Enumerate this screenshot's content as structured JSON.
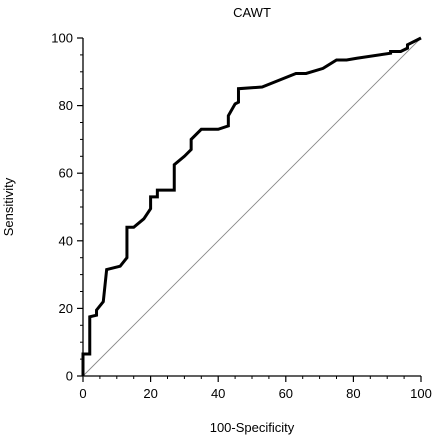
{
  "chart_data": {
    "type": "line",
    "title": "CAWT",
    "xlabel": "100-Specificity",
    "ylabel": "Sensitivity",
    "xlim": [
      0,
      100
    ],
    "ylim": [
      0,
      100
    ],
    "xticks": [
      0,
      20,
      40,
      60,
      80,
      100
    ],
    "yticks": [
      0,
      20,
      40,
      60,
      80,
      100
    ],
    "grid": false,
    "series": [
      {
        "role": "roc-curve",
        "color": "#000000",
        "points": [
          [
            0,
            0
          ],
          [
            0,
            6.5
          ],
          [
            2,
            6.5
          ],
          [
            2,
            17.5
          ],
          [
            4,
            18
          ],
          [
            4,
            19.5
          ],
          [
            6,
            22
          ],
          [
            7,
            31.5
          ],
          [
            11,
            32.5
          ],
          [
            13,
            35
          ],
          [
            13,
            44
          ],
          [
            15,
            44
          ],
          [
            18,
            46.5
          ],
          [
            20,
            49.5
          ],
          [
            20,
            53
          ],
          [
            22,
            53
          ],
          [
            22,
            55
          ],
          [
            27,
            55
          ],
          [
            27,
            62.5
          ],
          [
            30,
            65
          ],
          [
            32,
            67
          ],
          [
            32,
            70
          ],
          [
            35,
            73
          ],
          [
            40,
            73
          ],
          [
            43,
            74
          ],
          [
            43,
            77
          ],
          [
            45,
            80.5
          ],
          [
            46,
            81
          ],
          [
            46,
            85
          ],
          [
            53,
            85.5
          ],
          [
            58,
            87.5
          ],
          [
            63,
            89.5
          ],
          [
            66,
            89.5
          ],
          [
            71,
            91
          ],
          [
            75,
            93.5
          ],
          [
            78,
            93.5
          ],
          [
            81,
            94
          ],
          [
            91,
            95.5
          ],
          [
            91,
            96
          ],
          [
            94,
            96
          ],
          [
            96,
            97
          ],
          [
            96,
            98
          ],
          [
            100,
            100
          ]
        ]
      },
      {
        "role": "reference-diagonal",
        "color": "#888888",
        "points": [
          [
            0,
            0
          ],
          [
            100,
            100
          ]
        ]
      }
    ]
  }
}
